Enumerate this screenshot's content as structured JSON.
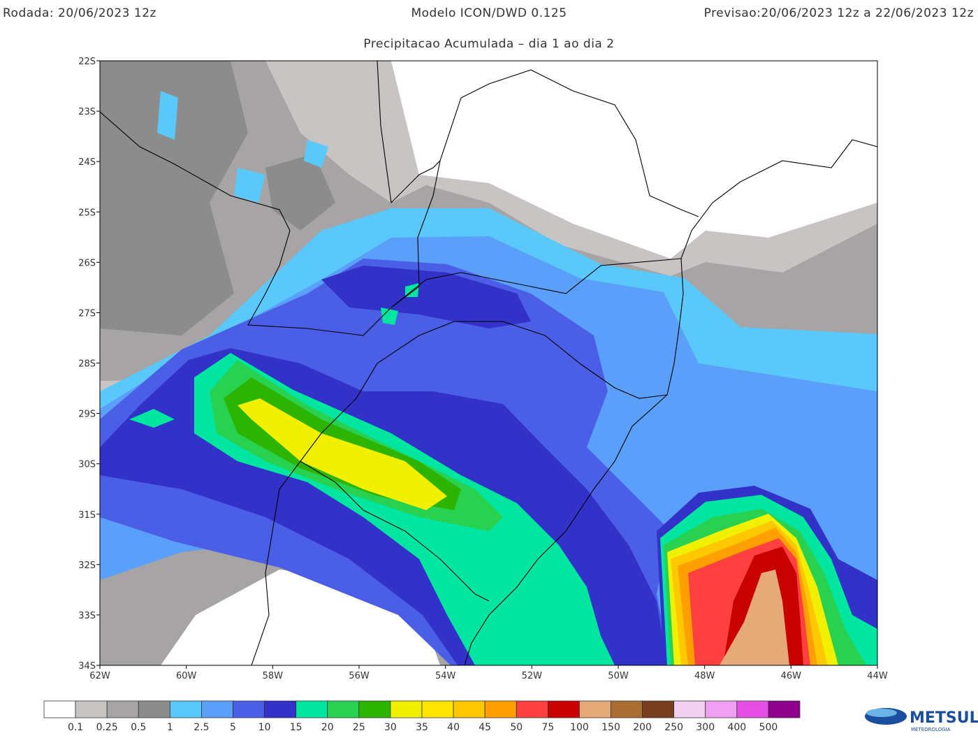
{
  "header": {
    "run": "Rodada: 20/06/2023 12z",
    "model": "Modelo ICON/DWD 0.125",
    "forecast": "Previsao:20/06/2023 12z a 22/06/2023 12z",
    "subtitle": "Precipitacao Acumulada – dia 1 ao dia 2"
  },
  "map": {
    "lat_labels": [
      "22S",
      "23S",
      "24S",
      "25S",
      "26S",
      "27S",
      "28S",
      "29S",
      "30S",
      "31S",
      "32S",
      "33S",
      "34S"
    ],
    "lon_labels": [
      "62W",
      "60W",
      "58W",
      "56W",
      "54W",
      "52W",
      "50W",
      "48W",
      "46W",
      "44W"
    ]
  },
  "colorbar": {
    "colors": [
      "#ffffff",
      "#c8c4c4",
      "#a6a4a4",
      "#8c8c8c",
      "#5ac8fa",
      "#5aa0fa",
      "#4b5fe6",
      "#3232c8",
      "#00e6a0",
      "#28d250",
      "#2db400",
      "#f0f000",
      "#ffe600",
      "#ffc800",
      "#ffa000",
      "#ff4040",
      "#c80000",
      "#e6aa78",
      "#aa6e32",
      "#783c1e",
      "#f0d2f0",
      "#f0a0f0",
      "#e650e6",
      "#8c008c"
    ],
    "labels": [
      0.1,
      0.25,
      0.5,
      1,
      2.5,
      5,
      10,
      15,
      20,
      25,
      30,
      35,
      40,
      45,
      50,
      75,
      100,
      150,
      200,
      250,
      300,
      400,
      500
    ]
  },
  "logo": {
    "name": "METSUL",
    "tagline": "METEOROLOGIA"
  }
}
